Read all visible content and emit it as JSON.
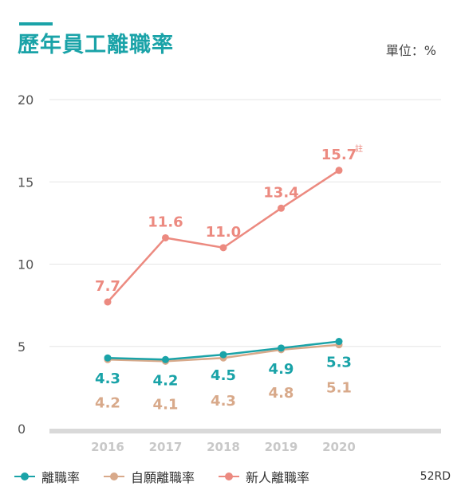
{
  "header": {
    "title": "歷年員工離職率",
    "unit": "單位：%"
  },
  "colors": {
    "accent": "#1aa3a8",
    "voluntary": "#d8a98a",
    "new_hire": "#ec8a80",
    "grid": "#e6e6e6",
    "baseline": "#d9d9d9"
  },
  "footer": {
    "brand": "52RD"
  },
  "chart_data": {
    "type": "line",
    "categories": [
      "2016",
      "2017",
      "2018",
      "2019",
      "2020"
    ],
    "ylim": [
      0,
      20
    ],
    "yticks": [
      "20",
      "15",
      "10",
      "5",
      "0"
    ],
    "grid": true,
    "legend_position": "bottom",
    "series": [
      {
        "name": "離職率",
        "values": [
          4.3,
          4.2,
          4.5,
          4.9,
          5.3
        ],
        "labels": [
          "4.3",
          "4.2",
          "4.5",
          "4.9",
          "5.3"
        ],
        "color": "#1aa3a8"
      },
      {
        "name": "自願離職率",
        "values": [
          4.2,
          4.1,
          4.3,
          4.8,
          5.1
        ],
        "labels": [
          "4.2",
          "4.1",
          "4.3",
          "4.8",
          "5.1"
        ],
        "color": "#d8a98a"
      },
      {
        "name": "新人離職率",
        "values": [
          7.7,
          11.6,
          11.0,
          13.4,
          15.7
        ],
        "labels": [
          "7.7",
          "11.6",
          "11.0",
          "13.4",
          "15.7"
        ],
        "color": "#ec8a80"
      }
    ],
    "annotations": [
      {
        "text": "註",
        "series": "新人離職率",
        "category": "2020"
      }
    ]
  }
}
